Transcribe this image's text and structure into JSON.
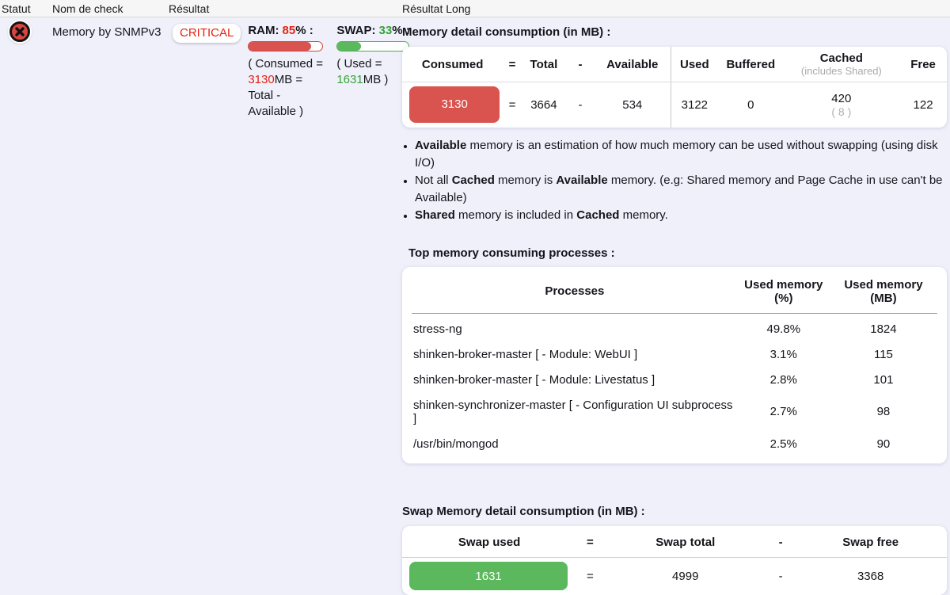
{
  "colors": {
    "page_background": "#f0f0fb",
    "critical_fill": "#d9534f",
    "critical_text": "#e42313",
    "ok_fill": "#5cb85c",
    "ok_text": "#36a336"
  },
  "listing_header": {
    "statut": "Statut",
    "nom": "Nom de check",
    "resultat": "Résultat",
    "resultat_long": "Résultat Long"
  },
  "check": {
    "name": "Memory by SNMPv3",
    "status": "CRITICAL",
    "ram": {
      "label": "RAM:",
      "percent": "85",
      "suffix": "% :",
      "bar_pct": 85,
      "detail": [
        {
          "t": "( Consumed =\n"
        },
        {
          "t": "3130",
          "accent": true
        },
        {
          "t": "MB =\nTotal -\nAvailable )"
        }
      ]
    },
    "swap": {
      "label": "SWAP:",
      "percent": "33",
      "suffix": "% :",
      "bar_pct": 33,
      "detail": [
        {
          "t": "( Used =\n"
        },
        {
          "t": "1631",
          "accent": true
        },
        {
          "t": "MB )"
        }
      ]
    }
  },
  "memory_section": {
    "title": "Memory detail consumption (in MB) :",
    "table": {
      "headers": {
        "consumed": "Consumed",
        "eq": "=",
        "total": "Total",
        "minus": "-",
        "available": "Available",
        "used": "Used",
        "buffered": "Buffered",
        "cached": "Cached",
        "cached_sub": "(includes Shared)",
        "free": "Free"
      },
      "values": {
        "consumed": "3130",
        "eq": "=",
        "total": "3664",
        "minus": "-",
        "available": "534",
        "used": "3122",
        "buffered": "0",
        "cached": "420",
        "cached_sub": "( 8 )",
        "free": "122"
      }
    },
    "notes": [
      [
        {
          "t": "Available",
          "b": true
        },
        {
          "t": " memory is an estimation of how much memory can be used without swapping (using disk I/O)"
        }
      ],
      [
        {
          "t": "Not all "
        },
        {
          "t": "Cached",
          "b": true
        },
        {
          "t": " memory is "
        },
        {
          "t": "Available",
          "b": true
        },
        {
          "t": " memory. (e.g: Shared memory and Page Cache in use can't be Available)"
        }
      ],
      [
        {
          "t": "Shared",
          "b": true
        },
        {
          "t": " memory is included in "
        },
        {
          "t": "Cached",
          "b": true
        },
        {
          "t": " memory."
        }
      ]
    ]
  },
  "processes_section": {
    "title": "Top memory consuming processes :",
    "headers": {
      "name": "Processes",
      "pct": "Used memory (%)",
      "mb": "Used memory (MB)"
    },
    "rows": [
      {
        "name": "stress-ng",
        "pct": "49.8%",
        "mb": "1824"
      },
      {
        "name": "shinken-broker-master [ - Module: WebUI ]",
        "pct": "3.1%",
        "mb": "115"
      },
      {
        "name": "shinken-broker-master [ - Module: Livestatus ]",
        "pct": "2.8%",
        "mb": "101"
      },
      {
        "name": "shinken-synchronizer-master [ - Configuration UI subprocess ]",
        "pct": "2.7%",
        "mb": "98"
      },
      {
        "name": "/usr/bin/mongod",
        "pct": "2.5%",
        "mb": "90"
      }
    ]
  },
  "swap_section": {
    "title": "Swap Memory detail consumption (in MB) :",
    "headers": {
      "used": "Swap used",
      "eq": "=",
      "total": "Swap total",
      "minus": "-",
      "free": "Swap free"
    },
    "values": {
      "used": "1631",
      "eq": "=",
      "total": "4999",
      "minus": "-",
      "free": "3368"
    }
  }
}
